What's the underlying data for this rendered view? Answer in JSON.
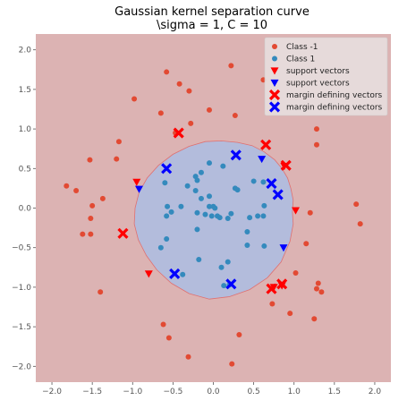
{
  "chart_data": {
    "type": "scatter",
    "title": "Gaussian kernel separation curve",
    "subtitle": "\\sigma = 1, C = 10",
    "xlim": [
      -2.2,
      2.2
    ],
    "ylim": [
      -2.2,
      2.2
    ],
    "xticks": [
      "−2.0",
      "−1.5",
      "−1.0",
      "−0.5",
      "0.0",
      "0.5",
      "1.0",
      "1.5",
      "2.0"
    ],
    "yticks": [
      "2.0",
      "1.5",
      "1.0",
      "0.5",
      "0.0",
      "−0.5",
      "−1.0",
      "−1.5",
      "−2.0"
    ],
    "grid": false,
    "legend_position": "top-right",
    "colors": {
      "outer_region": "#dcb3b3",
      "inner_region": "#b3bcdc",
      "class_neg": "#e24a33",
      "class_pos": "#348abd",
      "red_marker": "#ff0000",
      "blue_marker": "#0000ff"
    },
    "decision_boundary": [
      [
        0.98,
        -0.05
      ],
      [
        0.99,
        0.1
      ],
      [
        0.96,
        0.25
      ],
      [
        0.92,
        0.38
      ],
      [
        0.85,
        0.5
      ],
      [
        0.76,
        0.61
      ],
      [
        0.63,
        0.71
      ],
      [
        0.48,
        0.79
      ],
      [
        0.3,
        0.83
      ],
      [
        0.1,
        0.85
      ],
      [
        -0.1,
        0.84
      ],
      [
        -0.3,
        0.78
      ],
      [
        -0.5,
        0.68
      ],
      [
        -0.68,
        0.54
      ],
      [
        -0.82,
        0.38
      ],
      [
        -0.92,
        0.2
      ],
      [
        -0.97,
        0.0
      ],
      [
        -0.98,
        -0.2
      ],
      [
        -0.93,
        -0.4
      ],
      [
        -0.83,
        -0.6
      ],
      [
        -0.7,
        -0.78
      ],
      [
        -0.52,
        -0.95
      ],
      [
        -0.3,
        -1.08
      ],
      [
        -0.05,
        -1.15
      ],
      [
        0.2,
        -1.12
      ],
      [
        0.45,
        -1.03
      ],
      [
        0.67,
        -0.88
      ],
      [
        0.84,
        -0.68
      ],
      [
        0.95,
        -0.42
      ],
      [
        0.99,
        -0.2
      ]
    ],
    "series": [
      {
        "name": "Class -1",
        "marker": "circle",
        "points": [
          [
            -0.58,
            1.72
          ],
          [
            -0.42,
            1.57
          ],
          [
            -0.3,
            1.48
          ],
          [
            0.22,
            1.8
          ],
          [
            0.62,
            1.62
          ],
          [
            -0.98,
            1.38
          ],
          [
            -0.65,
            1.2
          ],
          [
            -0.28,
            1.07
          ],
          [
            -0.05,
            1.24
          ],
          [
            0.27,
            1.17
          ],
          [
            -0.47,
            0.95
          ],
          [
            1.28,
            1.0
          ],
          [
            -1.17,
            0.84
          ],
          [
            1.28,
            0.8
          ],
          [
            -1.53,
            0.61
          ],
          [
            -1.2,
            0.62
          ],
          [
            -1.82,
            0.28
          ],
          [
            -1.7,
            0.22
          ],
          [
            -1.5,
            0.03
          ],
          [
            -1.37,
            0.12
          ],
          [
            -1.52,
            -0.13
          ],
          [
            -1.52,
            -0.33
          ],
          [
            -1.62,
            -0.33
          ],
          [
            1.77,
            0.05
          ],
          [
            1.82,
            -0.2
          ],
          [
            1.2,
            -0.06
          ],
          [
            1.15,
            -0.45
          ],
          [
            1.02,
            -0.82
          ],
          [
            1.3,
            -0.95
          ],
          [
            1.28,
            -1.02
          ],
          [
            1.34,
            -1.06
          ],
          [
            0.73,
            -1.21
          ],
          [
            0.95,
            -1.33
          ],
          [
            1.25,
            -1.4
          ],
          [
            -1.4,
            -1.06
          ],
          [
            -0.62,
            -1.47
          ],
          [
            -0.55,
            -1.64
          ],
          [
            0.32,
            -1.6
          ],
          [
            -0.31,
            -1.88
          ],
          [
            0.23,
            -1.97
          ]
        ]
      },
      {
        "name": "Class 1",
        "marker": "circle",
        "points": [
          [
            -0.05,
            0.57
          ],
          [
            0.12,
            0.53
          ],
          [
            -0.15,
            0.45
          ],
          [
            -0.22,
            0.4
          ],
          [
            -0.6,
            0.32
          ],
          [
            -0.32,
            0.28
          ],
          [
            -0.2,
            0.35
          ],
          [
            -0.22,
            0.22
          ],
          [
            -0.15,
            0.12
          ],
          [
            -0.05,
            0.15
          ],
          [
            0.27,
            0.25
          ],
          [
            0.3,
            0.23
          ],
          [
            0.5,
            0.34
          ],
          [
            0.62,
            0.33
          ],
          [
            -0.57,
            0.02
          ],
          [
            -0.52,
            -0.05
          ],
          [
            -0.58,
            -0.1
          ],
          [
            -0.4,
            0.02
          ],
          [
            -0.05,
            0.02
          ],
          [
            0.0,
            0.02
          ],
          [
            0.02,
            0.0
          ],
          [
            -0.1,
            -0.08
          ],
          [
            -0.02,
            -0.1
          ],
          [
            0.05,
            -0.1
          ],
          [
            0.08,
            -0.12
          ],
          [
            0.18,
            -0.13
          ],
          [
            0.22,
            -0.07
          ],
          [
            -0.2,
            -0.06
          ],
          [
            -0.2,
            -0.27
          ],
          [
            0.42,
            -0.3
          ],
          [
            0.45,
            -0.12
          ],
          [
            0.55,
            -0.1
          ],
          [
            0.62,
            -0.1
          ],
          [
            0.63,
            0.03
          ],
          [
            -0.65,
            -0.5
          ],
          [
            -0.58,
            -0.39
          ],
          [
            -0.18,
            -0.65
          ],
          [
            0.63,
            -0.48
          ],
          [
            0.42,
            -0.47
          ],
          [
            0.1,
            -0.75
          ],
          [
            0.18,
            -0.68
          ],
          [
            -0.38,
            -0.84
          ],
          [
            0.13,
            -0.98
          ],
          [
            0.2,
            -0.97
          ]
        ]
      },
      {
        "name": "support vectors",
        "marker": "triangle-down",
        "color": "red",
        "points": [
          [
            0.88,
            0.53
          ],
          [
            -0.95,
            0.33
          ],
          [
            1.02,
            -0.03
          ],
          [
            -0.8,
            -0.83
          ],
          [
            0.75,
            -1.0
          ],
          [
            0.85,
            -0.98
          ]
        ]
      },
      {
        "name": "support vectors",
        "marker": "triangle-down",
        "color": "blue",
        "points": [
          [
            0.6,
            0.62
          ],
          [
            -0.92,
            0.24
          ],
          [
            0.87,
            -0.5
          ]
        ]
      },
      {
        "name": "margin defining vectors",
        "marker": "x",
        "color": "red",
        "points": [
          [
            -0.43,
            0.95
          ],
          [
            0.65,
            0.8
          ],
          [
            0.9,
            0.54
          ],
          [
            -1.12,
            -0.32
          ],
          [
            0.72,
            -1.02
          ],
          [
            0.85,
            -0.96
          ]
        ]
      },
      {
        "name": "margin defining vectors",
        "marker": "x",
        "color": "blue",
        "points": [
          [
            -0.58,
            0.5
          ],
          [
            0.28,
            0.67
          ],
          [
            0.72,
            0.31
          ],
          [
            0.8,
            0.17
          ],
          [
            -0.48,
            -0.83
          ],
          [
            0.22,
            -0.96
          ]
        ]
      }
    ]
  }
}
